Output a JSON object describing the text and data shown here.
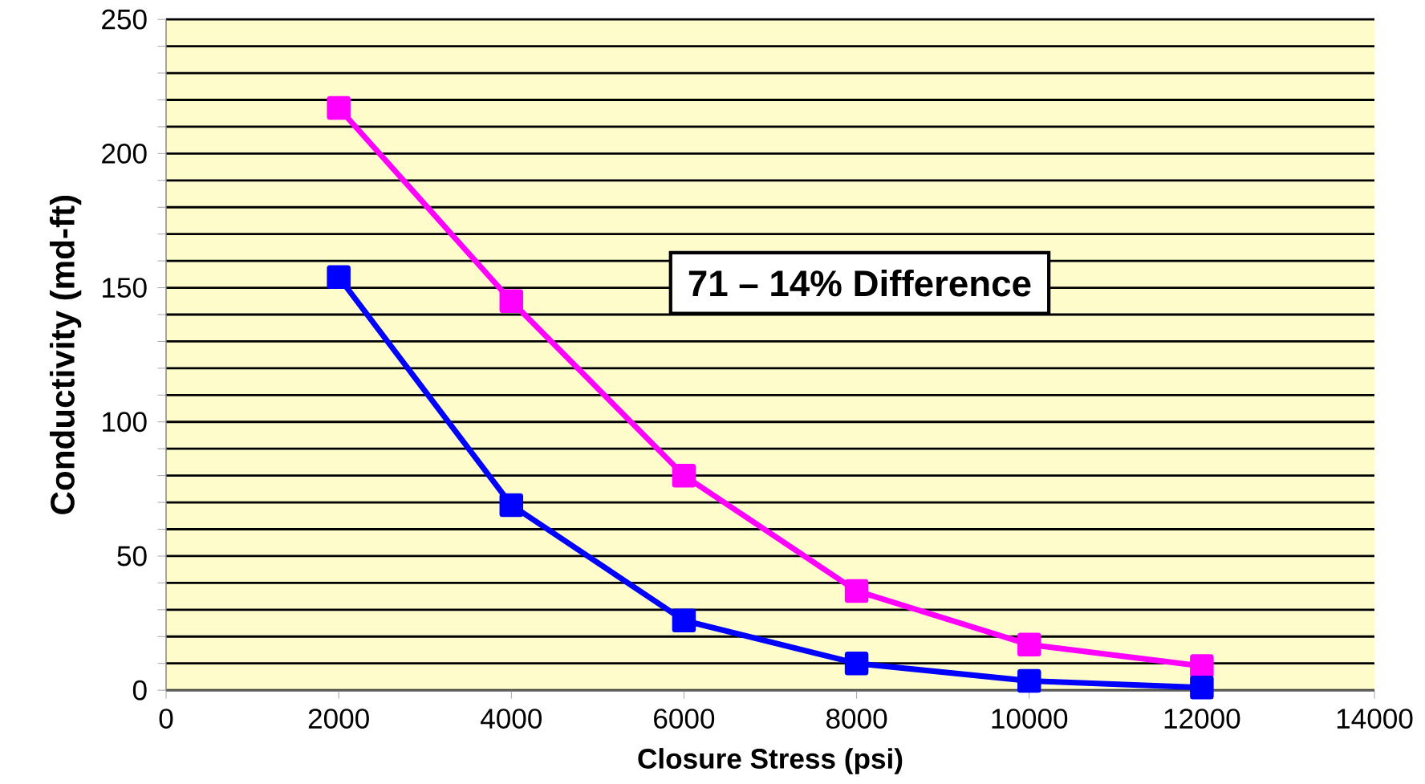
{
  "chart_data": {
    "type": "line",
    "xlabel": "Closure Stress (psi)",
    "ylabel": "Conductivity (md-ft)",
    "x": [
      2000,
      4000,
      6000,
      8000,
      10000,
      12000
    ],
    "series": [
      {
        "color": "#ff00ff",
        "values": [
          217,
          145,
          80,
          37,
          17,
          9
        ]
      },
      {
        "color": "#0000ff",
        "values": [
          154,
          69,
          26,
          10,
          3.5,
          1
        ]
      }
    ],
    "xlim": [
      0,
      14000
    ],
    "xticks": [
      0,
      2000,
      4000,
      6000,
      8000,
      10000,
      12000,
      14000
    ],
    "ylim": [
      0,
      250
    ],
    "yticks": [
      0,
      {
        "value": 10,
        "label": null
      },
      {
        "value": 20,
        "label": null
      },
      {
        "value": 30,
        "label": null
      },
      {
        "value": 40,
        "label": null
      },
      50,
      {
        "value": 60,
        "label": null
      },
      {
        "value": 70,
        "label": null
      },
      {
        "value": 80,
        "label": null
      },
      {
        "value": 90,
        "label": null
      },
      100,
      {
        "value": 110,
        "label": null
      },
      {
        "value": 120,
        "label": null
      },
      {
        "value": 130,
        "label": null
      },
      {
        "value": 140,
        "label": null
      },
      150,
      {
        "value": 160,
        "label": null
      },
      {
        "value": 170,
        "label": null
      },
      {
        "value": 180,
        "label": null
      },
      {
        "value": 190,
        "label": null
      },
      200,
      {
        "value": 210,
        "label": null
      },
      {
        "value": 220,
        "label": null
      },
      {
        "value": 230,
        "label": null
      },
      {
        "value": 240,
        "label": null
      },
      250
    ],
    "grid": "y",
    "marker": "square",
    "line_style": "solid",
    "annotations": [
      "71 – 14% Difference"
    ]
  }
}
